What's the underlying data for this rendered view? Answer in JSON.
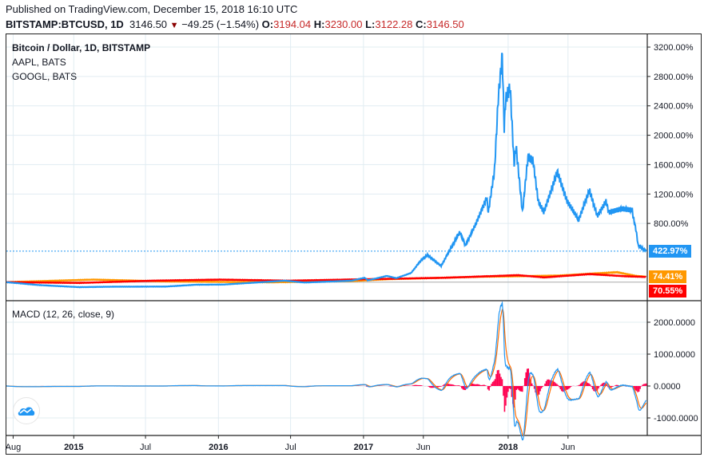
{
  "header": {
    "published": "Published on TradingView.com, December 15, 2018 16:10 UTC",
    "symbol": "BITSTAMP:BTCUSD, 1D",
    "last": "3146.50",
    "change": "−49.25 (−1.54%)",
    "o_label": "O:",
    "o": "3194.04",
    "h_label": "H:",
    "h": "3230.00",
    "l_label": "L:",
    "l": "3122.28",
    "c_label": "C:",
    "c": "3146.50",
    "down_icon": "triangle-down-icon"
  },
  "legend": [
    "Bitcoin / Dollar, 1D, BITSTAMP",
    "AAPL, BATS",
    "GOOGL, BATS"
  ],
  "macd_label": "MACD (12, 26, close, 9)",
  "colors": {
    "btc": "#2196f3",
    "aapl": "#ff9800",
    "googl": "#ff0000",
    "macd": "#2196f3",
    "signal": "#ff6d00",
    "hist": "#ff0050"
  },
  "chart_data": [
    {
      "type": "line",
      "scale": "percent",
      "ylim": [
        -100,
        3450
      ],
      "yticks": [
        "3200.00%",
        "2800.00%",
        "2400.00%",
        "2000.00%",
        "1600.00%",
        "1200.00%",
        "800.00%"
      ],
      "ytick_values": [
        3200,
        2800,
        2400,
        2000,
        1600,
        1200,
        800
      ],
      "xlim": [
        "2014-07-15",
        "2018-12-18"
      ],
      "xticks": [
        {
          "date": "2014-08-01",
          "label": "Aug"
        },
        {
          "date": "2015-01-01",
          "label": "2015"
        },
        {
          "date": "2015-07-01",
          "label": "Jul"
        },
        {
          "date": "2016-01-01",
          "label": "2016"
        },
        {
          "date": "2016-07-01",
          "label": "Jul"
        },
        {
          "date": "2017-01-01",
          "label": "2017"
        },
        {
          "date": "2017-06-01",
          "label": "Jun"
        },
        {
          "date": "2018-01-01",
          "label": "2018"
        },
        {
          "date": "2018-06-01",
          "label": "Jun"
        }
      ],
      "grid": true,
      "series": [
        {
          "name": "BTCUSD",
          "last_label": "422.97%",
          "last": 422.97,
          "points": [
            [
              "2014-07-15",
              0
            ],
            [
              "2014-10-01",
              -38
            ],
            [
              "2015-01-15",
              -68
            ],
            [
              "2015-04-01",
              -62
            ],
            [
              "2015-08-20",
              -60
            ],
            [
              "2015-11-05",
              -35
            ],
            [
              "2016-01-15",
              -32
            ],
            [
              "2016-06-17",
              20
            ],
            [
              "2016-08-05",
              -5
            ],
            [
              "2016-12-01",
              20
            ],
            [
              "2017-01-04",
              60
            ],
            [
              "2017-01-12",
              25
            ],
            [
              "2017-03-01",
              85
            ],
            [
              "2017-03-25",
              55
            ],
            [
              "2017-05-01",
              125
            ],
            [
              "2017-05-25",
              290
            ],
            [
              "2017-06-11",
              370
            ],
            [
              "2017-07-16",
              220
            ],
            [
              "2017-08-05",
              420
            ],
            [
              "2017-09-01",
              680
            ],
            [
              "2017-09-15",
              500
            ],
            [
              "2017-10-12",
              800
            ],
            [
              "2017-11-08",
              1150
            ],
            [
              "2017-11-12",
              950
            ],
            [
              "2017-11-28",
              1550
            ],
            [
              "2017-12-07",
              2500
            ],
            [
              "2017-12-17",
              3080
            ],
            [
              "2017-12-22",
              2100
            ],
            [
              "2017-12-26",
              2500
            ],
            [
              "2018-01-06",
              2650
            ],
            [
              "2018-01-16",
              1600
            ],
            [
              "2018-01-21",
              1850
            ],
            [
              "2018-02-06",
              950
            ],
            [
              "2018-02-20",
              1700
            ],
            [
              "2018-03-05",
              1650
            ],
            [
              "2018-03-18",
              1100
            ],
            [
              "2018-04-01",
              950
            ],
            [
              "2018-05-05",
              1500
            ],
            [
              "2018-05-30",
              1100
            ],
            [
              "2018-06-28",
              850
            ],
            [
              "2018-07-25",
              1250
            ],
            [
              "2018-08-14",
              900
            ],
            [
              "2018-09-05",
              1100
            ],
            [
              "2018-09-12",
              950
            ],
            [
              "2018-10-15",
              1000
            ],
            [
              "2018-11-10",
              980
            ],
            [
              "2018-11-14",
              850
            ],
            [
              "2018-11-20",
              700
            ],
            [
              "2018-11-25",
              500
            ],
            [
              "2018-12-15",
              422.97
            ]
          ]
        },
        {
          "name": "AAPL",
          "last_label": "74.41%",
          "last": 74.41,
          "points": [
            [
              "2014-07-15",
              0
            ],
            [
              "2015-02-20",
              35
            ],
            [
              "2015-08-24",
              10
            ],
            [
              "2016-05-12",
              -2
            ],
            [
              "2016-12-01",
              15
            ],
            [
              "2017-03-01",
              40
            ],
            [
              "2017-11-01",
              75
            ],
            [
              "2018-01-15",
              80
            ],
            [
              "2018-05-10",
              90
            ],
            [
              "2018-10-03",
              135
            ],
            [
              "2018-11-20",
              85
            ],
            [
              "2018-12-15",
              74.41
            ]
          ]
        },
        {
          "name": "GOOGL",
          "last_label": "70.55%",
          "last": 70.55,
          "points": [
            [
              "2014-07-15",
              0
            ],
            [
              "2015-01-15",
              -10
            ],
            [
              "2015-07-20",
              20
            ],
            [
              "2016-01-05",
              35
            ],
            [
              "2016-06-27",
              20
            ],
            [
              "2017-01-05",
              40
            ],
            [
              "2017-07-25",
              60
            ],
            [
              "2018-01-26",
              95
            ],
            [
              "2018-04-02",
              65
            ],
            [
              "2018-07-26",
              110
            ],
            [
              "2018-10-25",
              80
            ],
            [
              "2018-12-15",
              70.55
            ]
          ]
        }
      ]
    },
    {
      "type": "line",
      "title": "MACD (12, 26, close, 9)",
      "ylim": [
        -1550,
        2650
      ],
      "yticks": [
        "2000.0000",
        "1000.0000",
        "0.0000",
        "-1000.0000"
      ],
      "ytick_values": [
        2000,
        1000,
        0,
        -1000
      ]
    }
  ]
}
